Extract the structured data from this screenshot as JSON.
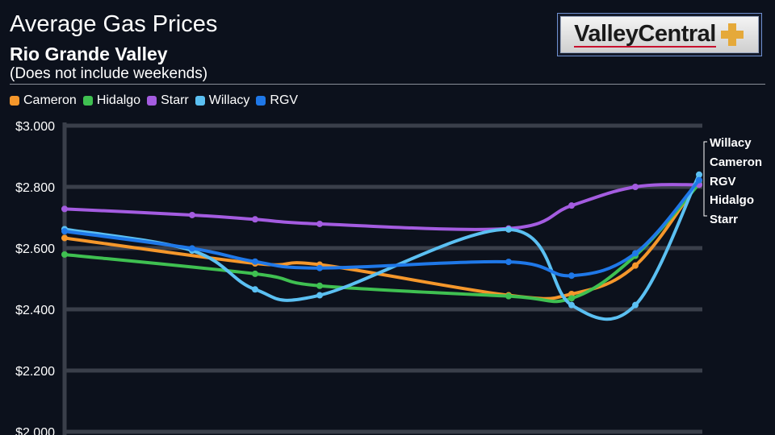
{
  "header": {
    "title": "Average Gas Prices",
    "subtitle": "Rio Grande Valley",
    "note": "(Does not include weekends)"
  },
  "logo": {
    "text": "ValleyCentral"
  },
  "chart_data": {
    "type": "line",
    "x": [
      0,
      1,
      2,
      3,
      4,
      5,
      6,
      7,
      8
    ],
    "ylim": [
      2.0,
      3.0
    ],
    "yticks": [
      {
        "value": 3.0,
        "label": "$3.000"
      },
      {
        "value": 2.8,
        "label": "$2.800"
      },
      {
        "value": 2.6,
        "label": "$2.600"
      },
      {
        "value": 2.4,
        "label": "$2.400"
      },
      {
        "value": 2.2,
        "label": "$2.200"
      },
      {
        "value": 2.0,
        "label": "$2.000"
      }
    ],
    "grid": true,
    "legend_position": "top-left",
    "series": [
      {
        "name": "Cameron",
        "color": "#f5972b",
        "points": [
          [
            0,
            2.633
          ],
          [
            2,
            2.55
          ],
          [
            3,
            2.546
          ],
          [
            5,
            2.446
          ],
          [
            6,
            2.45
          ],
          [
            7,
            2.543
          ],
          [
            8,
            2.82
          ]
        ]
      },
      {
        "name": "Hidalgo",
        "color": "#3fc051",
        "points": [
          [
            0,
            2.579
          ],
          [
            2,
            2.516
          ],
          [
            3,
            2.477
          ],
          [
            5,
            2.443
          ],
          [
            6,
            2.436
          ],
          [
            7,
            2.575
          ],
          [
            8,
            2.81
          ]
        ]
      },
      {
        "name": "Starr",
        "color": "#a45ce0",
        "points": [
          [
            0,
            2.728
          ],
          [
            1,
            2.708
          ],
          [
            2,
            2.694
          ],
          [
            3,
            2.679
          ],
          [
            5,
            2.664
          ],
          [
            6,
            2.739
          ],
          [
            7,
            2.8
          ],
          [
            8,
            2.807
          ]
        ]
      },
      {
        "name": "Willacy",
        "color": "#5bc0f2",
        "points": [
          [
            0,
            2.662
          ],
          [
            1,
            2.592
          ],
          [
            2,
            2.465
          ],
          [
            3,
            2.446
          ],
          [
            5,
            2.661
          ],
          [
            6,
            2.414
          ],
          [
            7,
            2.414
          ],
          [
            8,
            2.84
          ]
        ]
      },
      {
        "name": "RGV",
        "color": "#1f78e8",
        "points": [
          [
            0,
            2.655
          ],
          [
            1,
            2.599
          ],
          [
            2,
            2.556
          ],
          [
            3,
            2.535
          ],
          [
            5,
            2.555
          ],
          [
            6,
            2.51
          ],
          [
            7,
            2.583
          ],
          [
            8,
            2.822
          ]
        ]
      }
    ],
    "end_labels": [
      "Willacy",
      "Cameron",
      "RGV",
      "Hidalgo",
      "Starr"
    ]
  }
}
